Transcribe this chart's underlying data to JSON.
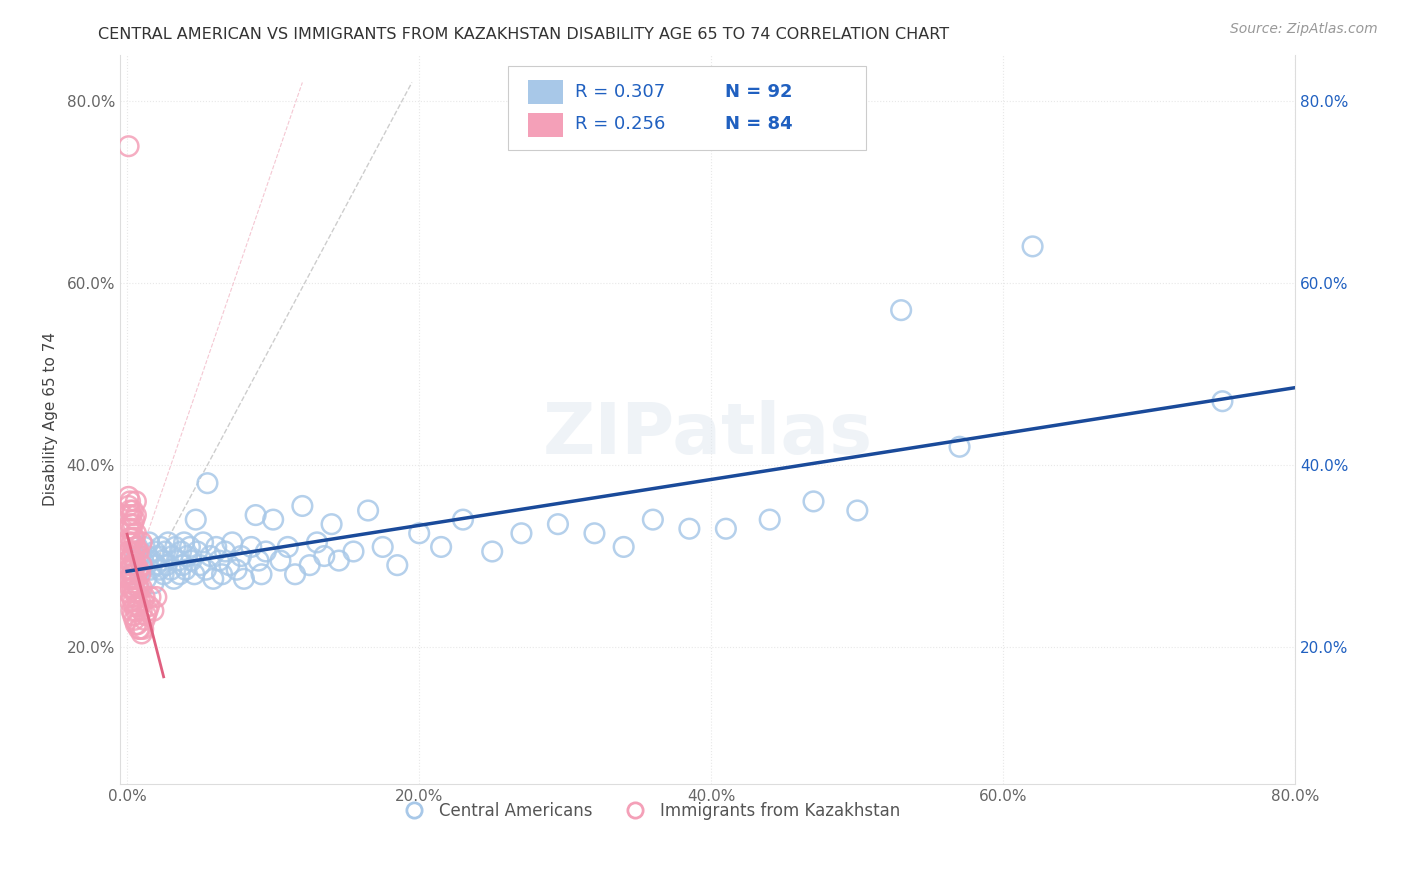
{
  "title": "CENTRAL AMERICAN VS IMMIGRANTS FROM KAZAKHSTAN DISABILITY AGE 65 TO 74 CORRELATION CHART",
  "source": "Source: ZipAtlas.com",
  "ylabel": "Disability Age 65 to 74",
  "xlim": [
    -0.005,
    0.8
  ],
  "ylim": [
    0.05,
    0.85
  ],
  "xtick_vals": [
    0.0,
    0.2,
    0.4,
    0.6,
    0.8
  ],
  "ytick_vals": [
    0.2,
    0.4,
    0.6,
    0.8
  ],
  "legend_entry1_r": "R = 0.307",
  "legend_entry1_n": "N = 92",
  "legend_entry2_r": "R = 0.256",
  "legend_entry2_n": "N = 84",
  "blue_color": "#A8C8E8",
  "pink_color": "#F4A0B8",
  "blue_line_color": "#1A4A9A",
  "pink_line_color": "#E06080",
  "pink_diag_color": "#F0B0C0",
  "gray_diag_color": "#C8C8C8",
  "legend_text_color": "#2060C0",
  "background_color": "#FFFFFF",
  "grid_color": "#E8E8E8",
  "watermark_color": "#E0E8F0",
  "blue_x": [
    0.003,
    0.005,
    0.007,
    0.008,
    0.009,
    0.01,
    0.011,
    0.012,
    0.013,
    0.014,
    0.015,
    0.016,
    0.017,
    0.018,
    0.019,
    0.02,
    0.021,
    0.022,
    0.023,
    0.024,
    0.025,
    0.026,
    0.027,
    0.028,
    0.03,
    0.031,
    0.032,
    0.033,
    0.035,
    0.036,
    0.037,
    0.038,
    0.039,
    0.04,
    0.041,
    0.043,
    0.044,
    0.046,
    0.047,
    0.048,
    0.05,
    0.052,
    0.054,
    0.055,
    0.057,
    0.059,
    0.061,
    0.063,
    0.065,
    0.067,
    0.07,
    0.072,
    0.075,
    0.078,
    0.08,
    0.085,
    0.088,
    0.09,
    0.092,
    0.095,
    0.1,
    0.105,
    0.11,
    0.115,
    0.12,
    0.125,
    0.13,
    0.135,
    0.14,
    0.145,
    0.155,
    0.165,
    0.175,
    0.185,
    0.2,
    0.215,
    0.23,
    0.25,
    0.27,
    0.295,
    0.32,
    0.34,
    0.36,
    0.385,
    0.41,
    0.44,
    0.47,
    0.5,
    0.53,
    0.57,
    0.62,
    0.75
  ],
  "blue_y": [
    0.28,
    0.295,
    0.31,
    0.265,
    0.3,
    0.285,
    0.295,
    0.31,
    0.275,
    0.3,
    0.315,
    0.285,
    0.295,
    0.27,
    0.305,
    0.29,
    0.3,
    0.285,
    0.31,
    0.295,
    0.28,
    0.305,
    0.29,
    0.315,
    0.285,
    0.3,
    0.275,
    0.31,
    0.295,
    0.28,
    0.305,
    0.29,
    0.315,
    0.285,
    0.3,
    0.31,
    0.295,
    0.28,
    0.34,
    0.305,
    0.29,
    0.315,
    0.285,
    0.38,
    0.3,
    0.275,
    0.31,
    0.295,
    0.28,
    0.305,
    0.29,
    0.315,
    0.285,
    0.3,
    0.275,
    0.31,
    0.345,
    0.295,
    0.28,
    0.305,
    0.34,
    0.295,
    0.31,
    0.28,
    0.355,
    0.29,
    0.315,
    0.3,
    0.335,
    0.295,
    0.305,
    0.35,
    0.31,
    0.29,
    0.325,
    0.31,
    0.34,
    0.305,
    0.325,
    0.335,
    0.325,
    0.31,
    0.34,
    0.33,
    0.33,
    0.34,
    0.36,
    0.35,
    0.57,
    0.42,
    0.64,
    0.47
  ],
  "pink_x": [
    0.001,
    0.001,
    0.001,
    0.001,
    0.001,
    0.001,
    0.001,
    0.001,
    0.001,
    0.001,
    0.002,
    0.002,
    0.002,
    0.002,
    0.002,
    0.002,
    0.002,
    0.002,
    0.002,
    0.002,
    0.003,
    0.003,
    0.003,
    0.003,
    0.003,
    0.003,
    0.003,
    0.003,
    0.003,
    0.004,
    0.004,
    0.004,
    0.004,
    0.004,
    0.004,
    0.004,
    0.004,
    0.004,
    0.005,
    0.005,
    0.005,
    0.005,
    0.005,
    0.005,
    0.005,
    0.005,
    0.006,
    0.006,
    0.006,
    0.006,
    0.006,
    0.006,
    0.006,
    0.006,
    0.006,
    0.007,
    0.007,
    0.007,
    0.007,
    0.007,
    0.008,
    0.008,
    0.008,
    0.008,
    0.008,
    0.009,
    0.009,
    0.009,
    0.01,
    0.01,
    0.01,
    0.01,
    0.01,
    0.011,
    0.011,
    0.012,
    0.012,
    0.013,
    0.014,
    0.015,
    0.016,
    0.018,
    0.02,
    0.001
  ],
  "pink_y": [
    0.26,
    0.275,
    0.285,
    0.295,
    0.305,
    0.315,
    0.33,
    0.345,
    0.355,
    0.365,
    0.25,
    0.265,
    0.275,
    0.285,
    0.295,
    0.305,
    0.32,
    0.335,
    0.35,
    0.36,
    0.24,
    0.255,
    0.265,
    0.275,
    0.29,
    0.3,
    0.315,
    0.33,
    0.345,
    0.235,
    0.25,
    0.265,
    0.275,
    0.29,
    0.305,
    0.32,
    0.335,
    0.35,
    0.23,
    0.245,
    0.26,
    0.275,
    0.29,
    0.305,
    0.32,
    0.34,
    0.225,
    0.24,
    0.26,
    0.275,
    0.29,
    0.31,
    0.325,
    0.345,
    0.36,
    0.225,
    0.245,
    0.265,
    0.285,
    0.305,
    0.22,
    0.245,
    0.265,
    0.285,
    0.305,
    0.22,
    0.25,
    0.28,
    0.215,
    0.24,
    0.265,
    0.29,
    0.315,
    0.22,
    0.25,
    0.23,
    0.255,
    0.235,
    0.24,
    0.245,
    0.255,
    0.24,
    0.255,
    0.75
  ]
}
